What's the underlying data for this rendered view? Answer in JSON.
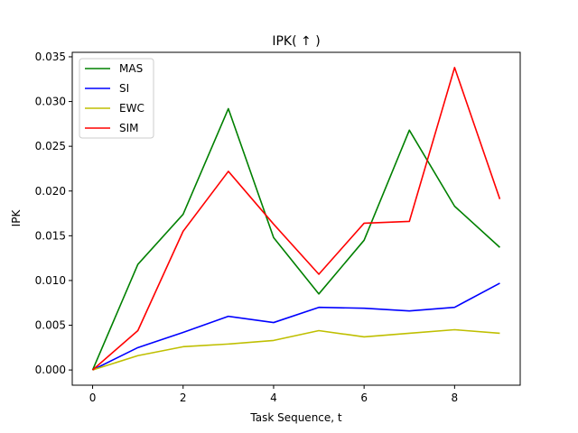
{
  "chart_data": {
    "type": "line",
    "title": "IPK( ↑ )",
    "xlabel": "Task Sequence, t",
    "ylabel": "IPK",
    "x": [
      0,
      1,
      2,
      3,
      4,
      5,
      6,
      7,
      8,
      9
    ],
    "xlim": [
      -0.45,
      9.45
    ],
    "ylim": [
      -0.0017,
      0.0355
    ],
    "xticks": [
      0,
      2,
      4,
      6,
      8
    ],
    "xtick_labels": [
      "0",
      "2",
      "4",
      "6",
      "8"
    ],
    "yticks": [
      0.0,
      0.005,
      0.01,
      0.015,
      0.02,
      0.025,
      0.03,
      0.035
    ],
    "ytick_labels": [
      "0.000",
      "0.005",
      "0.010",
      "0.015",
      "0.020",
      "0.025",
      "0.030",
      "0.035"
    ],
    "grid": false,
    "legend_position": "top-left",
    "series": [
      {
        "name": "MAS",
        "color": "#008000",
        "values": [
          0.0,
          0.0118,
          0.0174,
          0.0292,
          0.0148,
          0.0085,
          0.0145,
          0.0268,
          0.0183,
          0.0137
        ]
      },
      {
        "name": "SI",
        "color": "#0000ff",
        "values": [
          0.0,
          0.0025,
          0.0042,
          0.006,
          0.0053,
          0.007,
          0.0069,
          0.0066,
          0.007,
          0.0097
        ]
      },
      {
        "name": "EWC",
        "color": "#bfbf00",
        "values": [
          0.0,
          0.0016,
          0.0026,
          0.0029,
          0.0033,
          0.0044,
          0.0037,
          0.0041,
          0.0045,
          0.0041
        ]
      },
      {
        "name": "SIM",
        "color": "#ff0000",
        "values": [
          0.0,
          0.0044,
          0.0155,
          0.0222,
          0.0163,
          0.0107,
          0.0164,
          0.0166,
          0.0338,
          0.0191
        ]
      }
    ]
  }
}
